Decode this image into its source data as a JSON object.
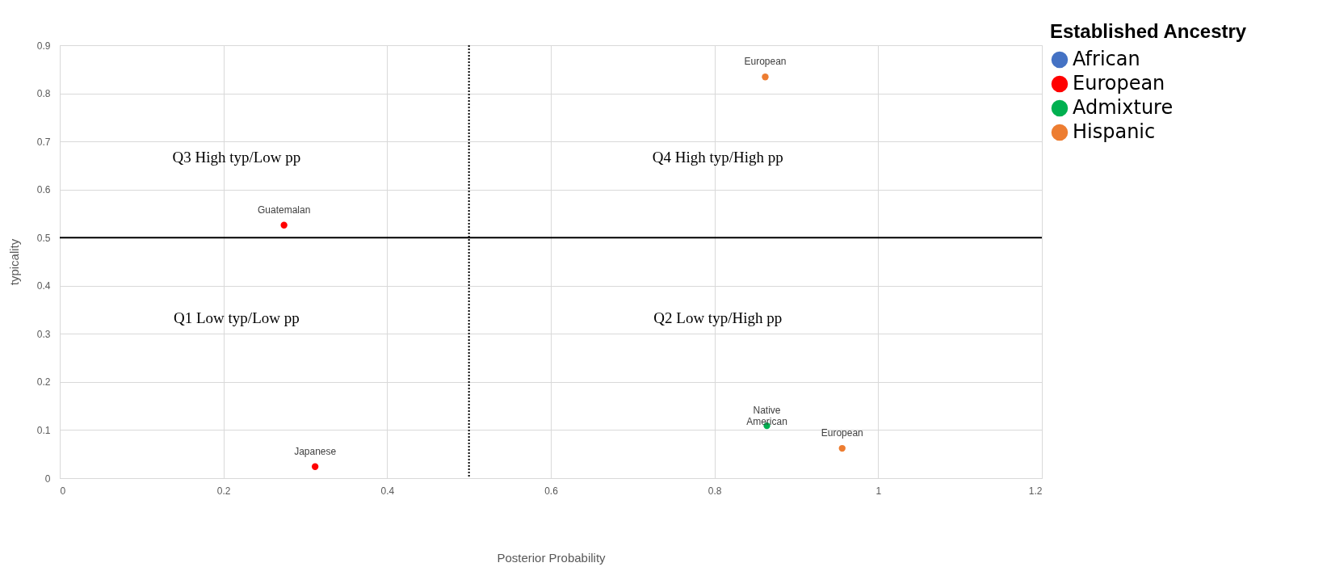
{
  "chart_data": {
    "type": "scatter",
    "xlabel": "Posterior Probability",
    "ylabel": "typicality",
    "legend_title": "Established Ancestry",
    "series": [
      {
        "name": "African",
        "color": "#4472c4"
      },
      {
        "name": "European",
        "color": "#ff0000",
        "x": [
          0.274,
          0.312
        ],
        "values": [
          0.526,
          0.024
        ]
      },
      {
        "name": "Admixture",
        "color": "#00b050",
        "x": [
          0.864
        ],
        "values": [
          0.109
        ]
      },
      {
        "name": "Hispanic",
        "color": "#ed7d31",
        "x": [
          0.862,
          0.956
        ],
        "values": [
          0.834,
          0.062
        ]
      }
    ],
    "xlim": [
      0,
      1.2
    ],
    "xticks": [
      0,
      0.2,
      0.4,
      0.6,
      0.8,
      1,
      1.2
    ],
    "ylim": [
      0,
      0.9
    ],
    "yticks": [
      0,
      0.1,
      0.2,
      0.3,
      0.4,
      0.5,
      0.6,
      0.7,
      0.8,
      0.9
    ],
    "grid": true,
    "legend": "top right",
    "marker": "circle",
    "ref_lines": [
      {
        "axis": "x",
        "value": 0.5,
        "line_style": "dotted",
        "color": "#000000"
      },
      {
        "axis": "y",
        "value": 0.5,
        "line_style": "solid",
        "color": "#000000"
      }
    ],
    "annotations": [
      {
        "text": "Guatemalan",
        "x": 0.274,
        "y": 0.526
      },
      {
        "text": "Japanese",
        "x": 0.312,
        "y": 0.024
      },
      {
        "text": "Native\nAmerican",
        "x": 0.864,
        "y": 0.109
      },
      {
        "text": "European",
        "x": 0.862,
        "y": 0.834
      },
      {
        "text": "European",
        "x": 0.956,
        "y": 0.062
      },
      "Q3 High typ/Low pp",
      "Q4 High typ/High pp",
      "Q1 Low typ/Low pp",
      "Q2 Low typ/High pp"
    ]
  }
}
